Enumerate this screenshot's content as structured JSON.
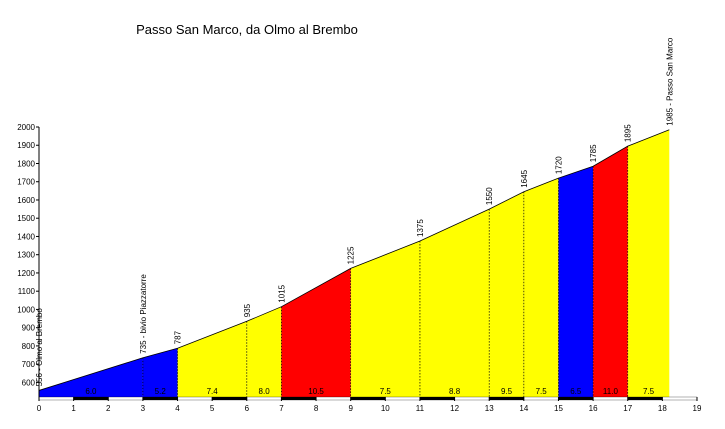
{
  "chart_data": {
    "type": "profile",
    "title": "Passo San Marco, da Olmo al Brembo",
    "x": [
      0,
      3,
      4,
      6,
      7,
      9,
      11,
      13,
      14,
      15,
      16,
      17,
      18.2
    ],
    "values": [
      556,
      735,
      787,
      935,
      1015,
      1225,
      1375,
      1550,
      1645,
      1720,
      1785,
      1895,
      1985
    ],
    "value_labels": [
      "556 - Olmo al Brembo",
      "735 - bivio Piazzatorre",
      "787",
      "935",
      "1015",
      "1225",
      "1375",
      "1550",
      "1645",
      "1720",
      "1785",
      "1895",
      "1985 - Passo San Marco"
    ],
    "segment_colors": [
      "#0000ff",
      "#0000ff",
      "#ffff00",
      "#ffff00",
      "#ff0000",
      "#ffff00",
      "#ffff00",
      "#ffff00",
      "#ffff00",
      "#0000ff",
      "#ff0000",
      "#ffff00"
    ],
    "segment_labels": [
      "6.0",
      "5.2",
      "7.4",
      "8.0",
      "10.5",
      "7.5",
      "8.8",
      "9.5",
      "7.5",
      "6.5",
      "11.0",
      "7.5"
    ],
    "xlim": [
      0,
      19
    ],
    "xticks": [
      0,
      1,
      2,
      3,
      4,
      5,
      6,
      7,
      8,
      9,
      10,
      11,
      12,
      13,
      14,
      15,
      16,
      17,
      18,
      19
    ],
    "ylim": [
      520,
      2000
    ],
    "yticks": [
      600,
      700,
      800,
      900,
      1000,
      1100,
      1200,
      1300,
      1400,
      1500,
      1600,
      1700,
      1800,
      1900,
      2000
    ]
  }
}
